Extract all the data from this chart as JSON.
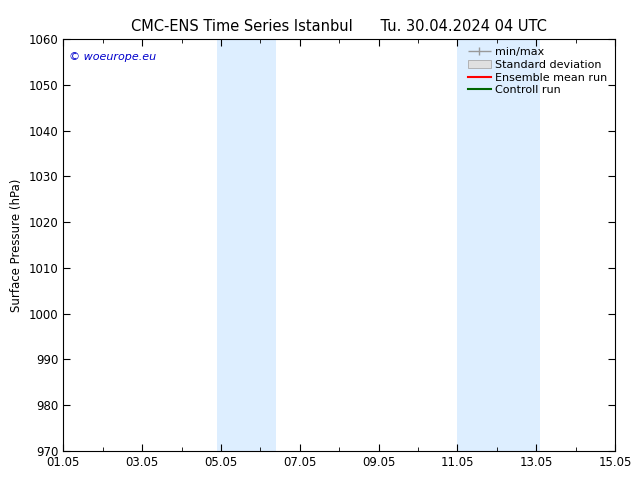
{
  "title": "CMC-ENS Time Series Istanbul",
  "title2": "Tu. 30.04.2024 04 UTC",
  "ylabel": "Surface Pressure (hPa)",
  "ylim": [
    970,
    1060
  ],
  "yticks": [
    970,
    980,
    990,
    1000,
    1010,
    1020,
    1030,
    1040,
    1050,
    1060
  ],
  "xlim": [
    0,
    14
  ],
  "xtick_labels": [
    "01.05",
    "03.05",
    "05.05",
    "07.05",
    "09.05",
    "11.05",
    "13.05",
    "15.05"
  ],
  "xtick_positions": [
    0,
    2,
    4,
    6,
    8,
    10,
    12,
    14
  ],
  "shade_bands": [
    {
      "xmin": 3.9,
      "xmax": 5.4
    },
    {
      "xmin": 10.0,
      "xmax": 12.1
    }
  ],
  "shade_color": "#ddeeff",
  "watermark": "© woeurope.eu",
  "legend_items": [
    "min/max",
    "Standard deviation",
    "Ensemble mean run",
    "Controll run"
  ],
  "background_color": "#ffffff",
  "title_fontsize": 10.5,
  "axis_fontsize": 8.5,
  "legend_fontsize": 8
}
